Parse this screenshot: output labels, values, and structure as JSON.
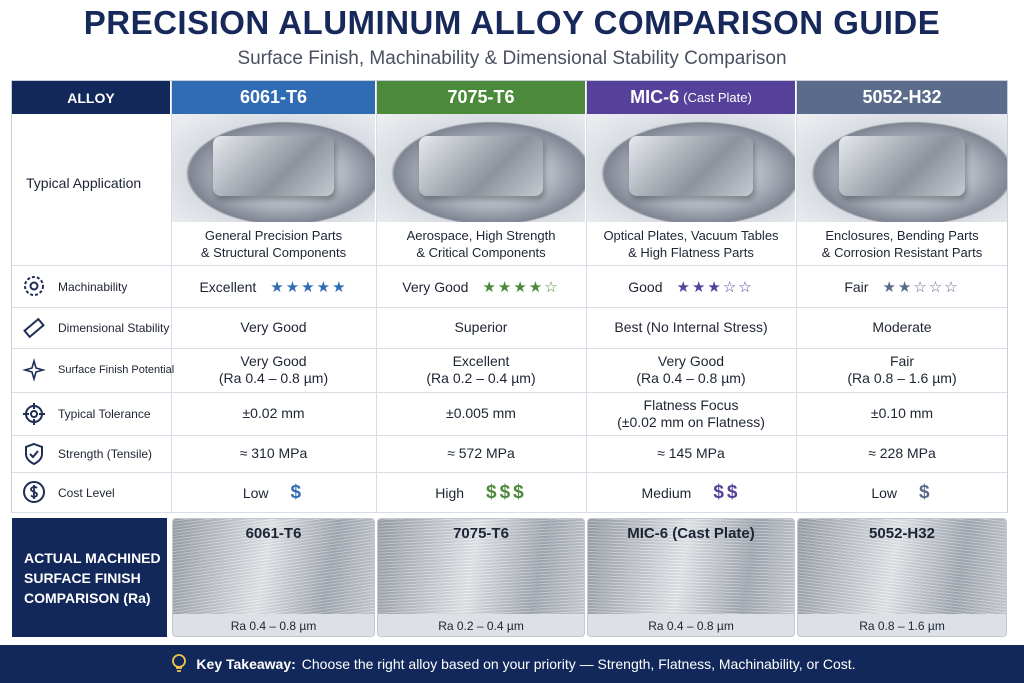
{
  "header": {
    "title": "PRECISION ALUMINUM ALLOY COMPARISON GUIDE",
    "subtitle": "Surface Finish, Machinability & Dimensional Stability Comparison"
  },
  "table": {
    "corner": "ALLOY",
    "columns": [
      {
        "name": "6061-T6",
        "color": "#2f6cb3"
      },
      {
        "name": "7075-T6",
        "color": "#4b8a3a"
      },
      {
        "name": "MIC-6",
        "note": "(Cast Plate)",
        "color": "#55409a"
      },
      {
        "name": "5052-H32",
        "color": "#5a6b8c"
      }
    ],
    "application": {
      "label": "Typical Application",
      "cells": [
        [
          "General Precision Parts",
          "& Structural Components"
        ],
        [
          "Aerospace, High Strength",
          "& Critical Components"
        ],
        [
          "Optical Plates, Vacuum Tables",
          "& High Flatness Parts"
        ],
        [
          "Enclosures, Bending Parts",
          "& Corrosion Resistant Parts"
        ]
      ]
    },
    "machinability": {
      "label": "Machinability",
      "cells": [
        {
          "text": "Excellent",
          "stars": "★★★★★"
        },
        {
          "text": "Very Good",
          "stars": "★★★★☆"
        },
        {
          "text": "Good",
          "stars": "★★★☆☆"
        },
        {
          "text": "Fair",
          "stars": "★★☆☆☆"
        }
      ]
    },
    "rows": [
      {
        "label": "Dimensional Stability",
        "cells": [
          [
            "Very Good"
          ],
          [
            "Superior"
          ],
          [
            "Best (No Internal Stress)"
          ],
          [
            "Moderate"
          ]
        ]
      },
      {
        "label": "Surface Finish Potential",
        "cells": [
          [
            "Very Good",
            "(Ra 0.4 – 0.8 µm)"
          ],
          [
            "Excellent",
            "(Ra 0.2 – 0.4 µm)"
          ],
          [
            "Very Good",
            "(Ra 0.4 – 0.8 µm)"
          ],
          [
            "Fair",
            "(Ra 0.8 – 1.6 µm)"
          ]
        ]
      },
      {
        "label": "Typical Tolerance",
        "cells": [
          [
            "±0.02 mm"
          ],
          [
            "±0.005 mm"
          ],
          [
            "Flatness Focus",
            "(±0.02 mm on Flatness)"
          ],
          [
            "±0.10 mm"
          ]
        ]
      },
      {
        "label": "Strength (Tensile)",
        "cells": [
          [
            "≈ 310 MPa"
          ],
          [
            "≈ 572 MPa"
          ],
          [
            "≈ 145 MPa"
          ],
          [
            "≈ 228 MPa"
          ]
        ]
      }
    ],
    "cost": {
      "label": "Cost Level",
      "cells": [
        {
          "text": "Low",
          "symbols": "$"
        },
        {
          "text": "High",
          "symbols": "$$$"
        },
        {
          "text": "Medium",
          "symbols": "$$"
        },
        {
          "text": "Low",
          "symbols": "$"
        }
      ]
    }
  },
  "finish": {
    "label": [
      "ACTUAL MACHINED",
      "SURFACE FINISH",
      "COMPARISON (Ra)"
    ],
    "panels": [
      {
        "name": "6061-T6",
        "ra": "Ra 0.4 – 0.8 µm"
      },
      {
        "name": "7075-T6",
        "ra": "Ra 0.2 – 0.4 µm"
      },
      {
        "name": "MIC-6 (Cast Plate)",
        "ra": "Ra 0.4 – 0.8 µm"
      },
      {
        "name": "5052-H32",
        "ra": "Ra 0.8 – 1.6 µm"
      }
    ]
  },
  "footer": {
    "lead": "Key Takeaway:",
    "text": "Choose the right alloy based on your priority — Strength, Flatness, Machinability, or Cost."
  }
}
